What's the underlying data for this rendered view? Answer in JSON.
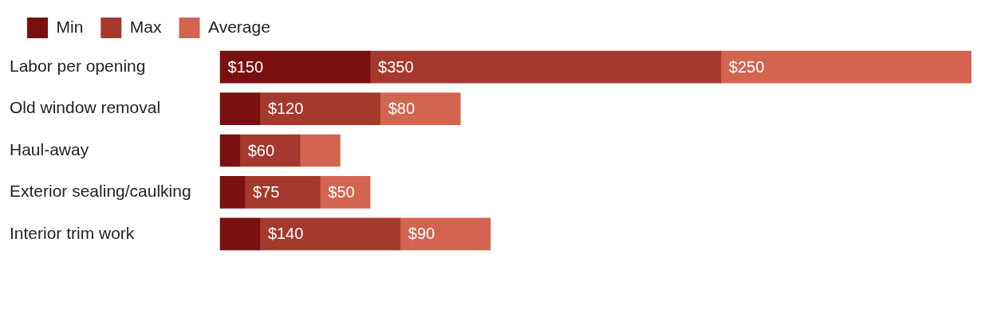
{
  "chart_data": {
    "type": "bar",
    "orientation": "horizontal",
    "stacked": true,
    "legend": "top left",
    "tick_labels": "y",
    "categories": [
      "Labor per opening",
      "Old window removal",
      "Haul-away",
      "Exterior sealing/caulking",
      "Interior trim work"
    ],
    "series": [
      {
        "name": "Min",
        "color": "#7a100f",
        "values": [
          150,
          40,
          20,
          25,
          40
        ],
        "value_labels": [
          "$150",
          null,
          null,
          null,
          null
        ]
      },
      {
        "name": "Max",
        "color": "#a5392d",
        "values": [
          350,
          120,
          60,
          75,
          140
        ],
        "value_labels": [
          "$350",
          "$120",
          "$60",
          "$75",
          "$140"
        ]
      },
      {
        "name": "Average",
        "color": "#d36450",
        "values": [
          250,
          80,
          40,
          50,
          90
        ],
        "value_labels": [
          "$250",
          "$80",
          null,
          "$50",
          "$90"
        ]
      }
    ]
  }
}
